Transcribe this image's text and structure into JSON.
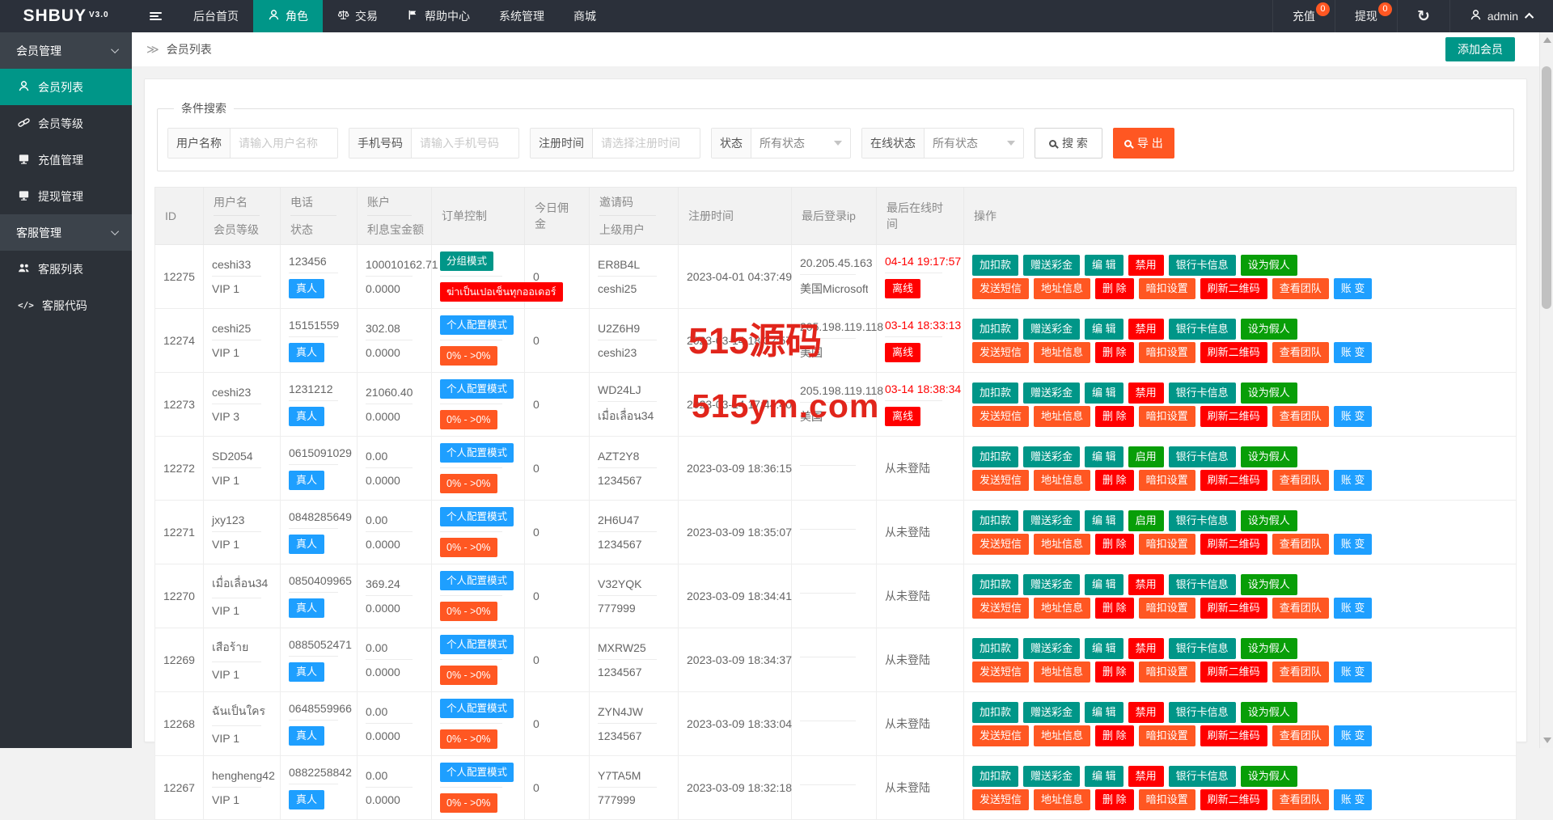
{
  "colors": {
    "teal": "#009688",
    "orange": "#ff5722",
    "red": "#ff0000",
    "green": "#089e08",
    "blue": "#1e9fff",
    "navbar_bg": "#2b303a",
    "sidebar_bg": "#2c3138",
    "sidebar_group_bg": "#3c434b",
    "watermark": "#e1251b"
  },
  "navbar": {
    "logo": "SHBUY",
    "version": "V3.0",
    "items": [
      {
        "label": "后台首页"
      },
      {
        "label": "角色"
      },
      {
        "label": "交易"
      },
      {
        "label": "帮助中心"
      },
      {
        "label": "系统管理"
      },
      {
        "label": "商城"
      }
    ],
    "recharge": {
      "label": "充值",
      "badge": "0"
    },
    "withdraw": {
      "label": "提现",
      "badge": "0"
    },
    "admin": "admin"
  },
  "sidebar": {
    "groups": [
      {
        "label": "会员管理",
        "items": [
          {
            "label": "会员列表"
          },
          {
            "label": "会员等级"
          },
          {
            "label": "充值管理"
          },
          {
            "label": "提现管理"
          }
        ]
      },
      {
        "label": "客服管理",
        "items": [
          {
            "label": "客服列表"
          },
          {
            "label": "客服代码"
          }
        ]
      }
    ]
  },
  "breadcrumb": {
    "icon": "≫",
    "title": "会员列表",
    "add_button": "添加会员"
  },
  "filters": {
    "legend": "条件搜索",
    "username": {
      "label": "用户名称",
      "placeholder": "请输入用户名称"
    },
    "phone": {
      "label": "手机号码",
      "placeholder": "请输入手机号码"
    },
    "regtime": {
      "label": "注册时间",
      "placeholder": "请选择注册时间"
    },
    "status": {
      "label": "状态",
      "value": "所有状态"
    },
    "online": {
      "label": "在线状态",
      "value": "所有状态"
    },
    "search_button": "搜 索",
    "export_button": "导 出"
  },
  "table": {
    "headers": {
      "id": "ID",
      "user1": "用户名",
      "user2": "会员等级",
      "phone1": "电话",
      "phone2": "状态",
      "acct1": "账户",
      "acct2": "利息宝金额",
      "order": "订单控制",
      "comm": "今日佣金",
      "inv1": "邀请码",
      "inv2": "上级用户",
      "reg": "注册时间",
      "ip": "最后登录ip",
      "last": "最后在线时间",
      "ops": "操作"
    },
    "actions": {
      "line1": [
        {
          "label": "加扣款",
          "color": "teal"
        },
        {
          "label": "赠送彩金",
          "color": "teal"
        },
        {
          "label": "编 辑",
          "color": "teal"
        },
        {
          "label": "$toggle",
          "color": ""
        },
        {
          "label": "银行卡信息",
          "color": "teal"
        },
        {
          "label": "设为假人",
          "color": "green"
        }
      ],
      "line2": [
        {
          "label": "发送短信",
          "color": "orange"
        },
        {
          "label": "地址信息",
          "color": "orange"
        },
        {
          "label": "删 除",
          "color": "red"
        },
        {
          "label": "暗扣设置",
          "color": "orange"
        },
        {
          "label": "刷新二维码",
          "color": "red"
        },
        {
          "label": "查看团队",
          "color": "orange"
        },
        {
          "label": "账 变",
          "color": "blue"
        }
      ]
    },
    "rows": [
      {
        "id": "12275",
        "username": "ceshi33",
        "level": "VIP 1",
        "phone": "123456",
        "phone_badge": "真人",
        "balance": "100010162.71",
        "interest": "0.0000",
        "order1": {
          "text": "分组模式",
          "color": "teal"
        },
        "order2": {
          "text": "ฆ่าเป็นเปอเซ็นทุกออเดอร์",
          "color": "red"
        },
        "commission": "0",
        "invite": "ER8B4L",
        "parent": "ceshi25",
        "reg_time": "2023-04-01 04:37:49",
        "ip": "20.205.45.163",
        "ip_loc": "美国Microsoft数据",
        "last_online": "04-14 19:17:57",
        "online_badge": "离线",
        "online_text": "",
        "toggle": {
          "label": "禁用",
          "color": "red"
        }
      },
      {
        "id": "12274",
        "username": "ceshi25",
        "level": "VIP 1",
        "phone": "15151559",
        "phone_badge": "真人",
        "balance": "302.08",
        "interest": "0.0000",
        "order1": {
          "text": "个人配置模式",
          "color": "blue"
        },
        "order2": {
          "text": "0% - >0%",
          "color": "orange"
        },
        "commission": "0",
        "invite": "U2Z6H9",
        "parent": "ceshi23",
        "reg_time": "2023-03-14 18:32:57",
        "ip": "205.198.119.118",
        "ip_loc": "美国",
        "last_online": "03-14 18:33:13",
        "online_badge": "离线",
        "online_text": "",
        "toggle": {
          "label": "禁用",
          "color": "red"
        }
      },
      {
        "id": "12273",
        "username": "ceshi23",
        "level": "VIP 3",
        "phone": "1231212",
        "phone_badge": "真人",
        "balance": "21060.40",
        "interest": "0.0000",
        "order1": {
          "text": "个人配置模式",
          "color": "blue"
        },
        "order2": {
          "text": "0% - >0%",
          "color": "orange"
        },
        "commission": "0",
        "invite": "WD24LJ",
        "parent": "เมื่อเลื่อน34",
        "reg_time": "2023-03-14 17:44:40",
        "ip": "205.198.119.118",
        "ip_loc": "美国",
        "last_online": "03-14 18:38:34",
        "online_badge": "离线",
        "online_text": "",
        "toggle": {
          "label": "禁用",
          "color": "red"
        }
      },
      {
        "id": "12272",
        "username": "SD2054",
        "level": "VIP 1",
        "phone": "0615091029",
        "phone_badge": "真人",
        "balance": "0.00",
        "interest": "0.0000",
        "order1": {
          "text": "个人配置模式",
          "color": "blue"
        },
        "order2": {
          "text": "0% - >0%",
          "color": "orange"
        },
        "commission": "0",
        "invite": "AZT2Y8",
        "parent": "1234567",
        "reg_time": "2023-03-09 18:36:15",
        "ip": "",
        "ip_loc": "",
        "last_online": "",
        "online_badge": "",
        "online_text": "从未登陆",
        "toggle": {
          "label": "启用",
          "color": "green"
        }
      },
      {
        "id": "12271",
        "username": "jxy123",
        "level": "VIP 1",
        "phone": "0848285649",
        "phone_badge": "真人",
        "balance": "0.00",
        "interest": "0.0000",
        "order1": {
          "text": "个人配置模式",
          "color": "blue"
        },
        "order2": {
          "text": "0% - >0%",
          "color": "orange"
        },
        "commission": "0",
        "invite": "2H6U47",
        "parent": "1234567",
        "reg_time": "2023-03-09 18:35:07",
        "ip": "",
        "ip_loc": "",
        "last_online": "",
        "online_badge": "",
        "online_text": "从未登陆",
        "toggle": {
          "label": "启用",
          "color": "green"
        }
      },
      {
        "id": "12270",
        "username": "เมื่อเลื่อน34",
        "level": "VIP 1",
        "phone": "0850409965",
        "phone_badge": "真人",
        "balance": "369.24",
        "interest": "0.0000",
        "order1": {
          "text": "个人配置模式",
          "color": "blue"
        },
        "order2": {
          "text": "0% - >0%",
          "color": "orange"
        },
        "commission": "0",
        "invite": "V32YQK",
        "parent": "777999",
        "reg_time": "2023-03-09 18:34:41",
        "ip": "",
        "ip_loc": "",
        "last_online": "",
        "online_badge": "",
        "online_text": "从未登陆",
        "toggle": {
          "label": "禁用",
          "color": "red"
        }
      },
      {
        "id": "12269",
        "username": "เสือร้าย",
        "level": "VIP 1",
        "phone": "0885052471",
        "phone_badge": "真人",
        "balance": "0.00",
        "interest": "0.0000",
        "order1": {
          "text": "个人配置模式",
          "color": "blue"
        },
        "order2": {
          "text": "0% - >0%",
          "color": "orange"
        },
        "commission": "0",
        "invite": "MXRW25",
        "parent": "1234567",
        "reg_time": "2023-03-09 18:34:37",
        "ip": "",
        "ip_loc": "",
        "last_online": "",
        "online_badge": "",
        "online_text": "从未登陆",
        "toggle": {
          "label": "禁用",
          "color": "red"
        }
      },
      {
        "id": "12268",
        "username": "ฉันเป็นใคร",
        "level": "VIP 1",
        "phone": "0648559966",
        "phone_badge": "真人",
        "balance": "0.00",
        "interest": "0.0000",
        "order1": {
          "text": "个人配置模式",
          "color": "blue"
        },
        "order2": {
          "text": "0% - >0%",
          "color": "orange"
        },
        "commission": "0",
        "invite": "ZYN4JW",
        "parent": "1234567",
        "reg_time": "2023-03-09 18:33:04",
        "ip": "",
        "ip_loc": "",
        "last_online": "",
        "online_badge": "",
        "online_text": "从未登陆",
        "toggle": {
          "label": "禁用",
          "color": "red"
        }
      },
      {
        "id": "12267",
        "username": "hengheng42",
        "level": "VIP 1",
        "phone": "0882258842",
        "phone_badge": "真人",
        "balance": "0.00",
        "interest": "0.0000",
        "order1": {
          "text": "个人配置模式",
          "color": "blue"
        },
        "order2": {
          "text": "0% - >0%",
          "color": "orange"
        },
        "commission": "0",
        "invite": "Y7TA5M",
        "parent": "777999",
        "reg_time": "2023-03-09 18:32:18",
        "ip": "",
        "ip_loc": "",
        "last_online": "",
        "online_badge": "",
        "online_text": "从未登陆",
        "toggle": {
          "label": "禁用",
          "color": "red"
        }
      }
    ]
  },
  "watermarks": {
    "line1": "515源码",
    "line2": "515ym.com"
  }
}
